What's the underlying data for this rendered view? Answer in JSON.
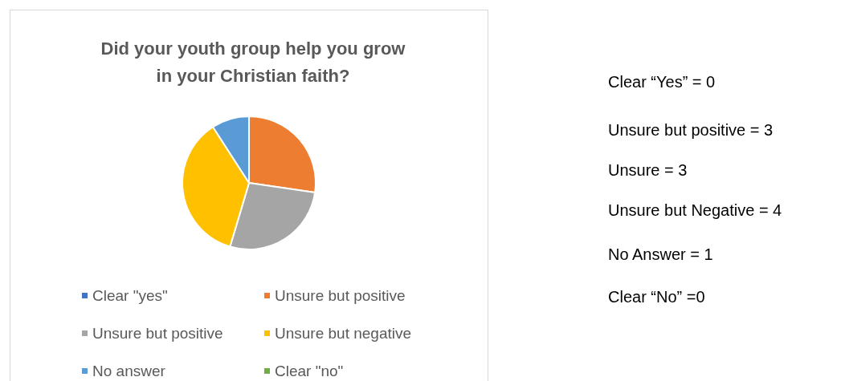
{
  "chart_data": {
    "type": "pie",
    "title": "Did your youth group help you grow\nin your Christian faith?",
    "categories": [
      "Clear \"yes\"",
      "Unsure but positive",
      "Unsure but positive",
      "Unsure but negative",
      "No answer",
      "Clear \"no\""
    ],
    "values": [
      0,
      27.3,
      27.3,
      36.3,
      9.1,
      0
    ],
    "colors": [
      "#4472c4",
      "#ed7d31",
      "#a5a5a5",
      "#ffc000",
      "#5b9bd5",
      "#70ad47"
    ],
    "legend": "bottom",
    "annotations": [
      "Clear “Yes” = 0",
      "Unsure but positive = 3",
      "Unsure = 3",
      "Unsure but Negative = 4",
      "No Answer = 1",
      "Clear “No” =0"
    ]
  }
}
